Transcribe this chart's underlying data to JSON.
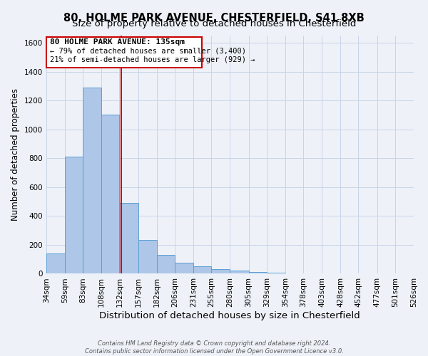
{
  "title": "80, HOLME PARK AVENUE, CHESTERFIELD, S41 8XB",
  "subtitle": "Size of property relative to detached houses in Chesterfield",
  "xlabel": "Distribution of detached houses by size in Chesterfield",
  "ylabel": "Number of detached properties",
  "footer1": "Contains HM Land Registry data © Crown copyright and database right 2024.",
  "footer2": "Contains public sector information licensed under the Open Government Licence v3.0.",
  "property_label": "80 HOLME PARK AVENUE: 135sqm",
  "annotation_line1": "← 79% of detached houses are smaller (3,400)",
  "annotation_line2": "21% of semi-detached houses are larger (929) →",
  "bin_edges": [
    34,
    59,
    83,
    108,
    132,
    157,
    182,
    206,
    231,
    255,
    280,
    305,
    329,
    354,
    378,
    403,
    428,
    452,
    477,
    501,
    526
  ],
  "bar_heights": [
    140,
    810,
    1290,
    1100,
    490,
    235,
    130,
    75,
    50,
    30,
    20,
    10,
    5,
    4,
    3,
    2,
    2,
    1,
    1,
    1
  ],
  "bar_color": "#aec6e8",
  "bar_edge_color": "#5a9fd4",
  "vline_color": "#cc0000",
  "vline_x": 135,
  "ylim": [
    0,
    1650
  ],
  "yticks": [
    0,
    200,
    400,
    600,
    800,
    1000,
    1200,
    1400,
    1600
  ],
  "bg_color": "#eef2f8",
  "grid_color": "#c8d4e8",
  "annotation_box_color": "#cc0000",
  "title_fontsize": 10.5,
  "subtitle_fontsize": 9.5,
  "xlabel_fontsize": 9.5,
  "ylabel_fontsize": 8.5,
  "tick_fontsize": 7.5,
  "annotation_fontsize": 8,
  "footer_fontsize": 6
}
